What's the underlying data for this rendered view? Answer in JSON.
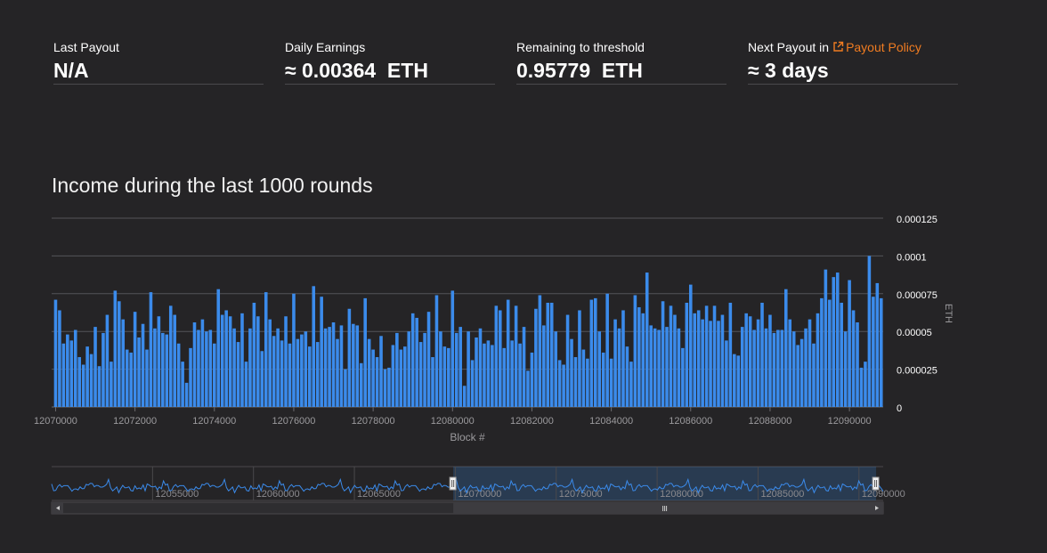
{
  "stats": {
    "last_payout": {
      "label": "Last Payout",
      "value": "N/A"
    },
    "daily_earnings": {
      "label": "Daily Earnings",
      "value": "≈ 0.00364  ETH"
    },
    "remaining": {
      "label": "Remaining to threshold",
      "value": "0.95779  ETH"
    },
    "next_payout": {
      "label": "Next Payout in",
      "link_label": "Payout Policy",
      "value": "≈ 3 days"
    }
  },
  "chart_title": "Income during the last 1000 rounds",
  "colors": {
    "bar": "#3b8beb",
    "background": "#252426",
    "accent": "#f07c21",
    "grid": "#555458",
    "navigator_line": "#3b8beb"
  },
  "chart_data": {
    "type": "bar",
    "title": "Income during the last 1000 rounds",
    "xlabel": "Block #",
    "ylabel": "ETH",
    "xlim": [
      12069900,
      12090850
    ],
    "ylim": [
      0,
      0.000125
    ],
    "x_ticks": [
      12070000,
      12072000,
      12074000,
      12076000,
      12078000,
      12080000,
      12082000,
      12084000,
      12086000,
      12088000,
      12090000
    ],
    "x_tick_labels": [
      "12070000",
      "12072000",
      "12074000",
      "12076000",
      "12078000",
      "12080000",
      "12082000",
      "12084000",
      "12086000",
      "12088000",
      "12090000"
    ],
    "y_ticks": [
      0,
      2.5e-05,
      5e-05,
      7.5e-05,
      0.0001,
      0.000125
    ],
    "y_tick_labels": [
      "0",
      "0.000025",
      "0.00005",
      "0.000075",
      "0.0001",
      "0.000125"
    ],
    "grid": true,
    "bar_width_blocks": 80,
    "x": [
      12070000,
      12070100,
      12070200,
      12070300,
      12070400,
      12070500,
      12070600,
      12070700,
      12070800,
      12070900,
      12071000,
      12071100,
      12071200,
      12071300,
      12071400,
      12071500,
      12071600,
      12071700,
      12071800,
      12071900,
      12072000,
      12072100,
      12072200,
      12072300,
      12072400,
      12072500,
      12072600,
      12072700,
      12072800,
      12072900,
      12073000,
      12073100,
      12073200,
      12073300,
      12073400,
      12073500,
      12073600,
      12073700,
      12073800,
      12073900,
      12074000,
      12074100,
      12074200,
      12074300,
      12074400,
      12074500,
      12074600,
      12074700,
      12074800,
      12074900,
      12075000,
      12075100,
      12075200,
      12075300,
      12075400,
      12075500,
      12075600,
      12075700,
      12075800,
      12075900,
      12076000,
      12076100,
      12076200,
      12076300,
      12076400,
      12076500,
      12076600,
      12076700,
      12076800,
      12076900,
      12077000,
      12077100,
      12077200,
      12077300,
      12077400,
      12077500,
      12077600,
      12077700,
      12077800,
      12077900,
      12078000,
      12078100,
      12078200,
      12078300,
      12078400,
      12078500,
      12078600,
      12078700,
      12078800,
      12078900,
      12079000,
      12079100,
      12079200,
      12079300,
      12079400,
      12079500,
      12079600,
      12079700,
      12079800,
      12079900,
      12080000,
      12080100,
      12080200,
      12080300,
      12080400,
      12080500,
      12080600,
      12080700,
      12080800,
      12080900,
      12081000,
      12081100,
      12081200,
      12081300,
      12081400,
      12081500,
      12081600,
      12081700,
      12081800,
      12081900,
      12082000,
      12082100,
      12082200,
      12082300,
      12082400,
      12082500,
      12082600,
      12082700,
      12082800,
      12082900,
      12083000,
      12083100,
      12083200,
      12083300,
      12083400,
      12083500,
      12083600,
      12083700,
      12083800,
      12083900,
      12084000,
      12084100,
      12084200,
      12084300,
      12084400,
      12084500,
      12084600,
      12084700,
      12084800,
      12084900,
      12085000,
      12085100,
      12085200,
      12085300,
      12085400,
      12085500,
      12085600,
      12085700,
      12085800,
      12085900,
      12086000,
      12086100,
      12086200,
      12086300,
      12086400,
      12086500,
      12086600,
      12086700,
      12086800,
      12086900,
      12087000,
      12087100,
      12087200,
      12087300,
      12087400,
      12087500,
      12087600,
      12087700,
      12087800,
      12087900,
      12088000,
      12088100,
      12088200,
      12088300,
      12088400,
      12088500,
      12088600,
      12088700,
      12088800,
      12088900,
      12089000,
      12089100,
      12089200,
      12089300,
      12089400,
      12089500,
      12089600,
      12089700,
      12089800,
      12089900,
      12090000,
      12090100,
      12090200,
      12090300,
      12090400,
      12090500,
      12090600,
      12090700,
      12090800
    ],
    "values": [
      7.1e-05,
      6.4e-05,
      4.2e-05,
      4.8e-05,
      4.4e-05,
      5.1e-05,
      3.3e-05,
      2.8e-05,
      4e-05,
      3.5e-05,
      5.3e-05,
      2.7e-05,
      4.9e-05,
      6.1e-05,
      3e-05,
      7.7e-05,
      7e-05,
      5.8e-05,
      3.8e-05,
      3.6e-05,
      6.3e-05,
      4.6e-05,
      5.5e-05,
      3.8e-05,
      7.6e-05,
      5.2e-05,
      6e-05,
      4.9e-05,
      4.8e-05,
      6.7e-05,
      6.1e-05,
      4.2e-05,
      3e-05,
      1.6e-05,
      3.9e-05,
      5.6e-05,
      5.1e-05,
      5.8e-05,
      5e-05,
      5.1e-05,
      4.2e-05,
      7.8e-05,
      6.1e-05,
      6.4e-05,
      6e-05,
      5.2e-05,
      4.3e-05,
      6.2e-05,
      3e-05,
      5.2e-05,
      6.9e-05,
      6e-05,
      3.7e-05,
      7.6e-05,
      5.8e-05,
      4.7e-05,
      5.2e-05,
      4.4e-05,
      6e-05,
      4.2e-05,
      7.5e-05,
      4.5e-05,
      4.8e-05,
      5e-05,
      4e-05,
      8e-05,
      4.3e-05,
      7.3e-05,
      5.2e-05,
      5.3e-05,
      5.6e-05,
      4.5e-05,
      5.4e-05,
      2.5e-05,
      6.5e-05,
      5.5e-05,
      5.4e-05,
      2.9e-05,
      7.2e-05,
      4.5e-05,
      3.8e-05,
      3.3e-05,
      4.7e-05,
      2.5e-05,
      2.6e-05,
      4.1e-05,
      4.9e-05,
      3.8e-05,
      4e-05,
      5e-05,
      6.2e-05,
      5.9e-05,
      4.3e-05,
      4.9e-05,
      6.3e-05,
      3.3e-05,
      7.4e-05,
      5e-05,
      4e-05,
      3.9e-05,
      7.7e-05,
      4.9e-05,
      5.3e-05,
      1.4e-05,
      5e-05,
      3.1e-05,
      4.6e-05,
      5.2e-05,
      4.2e-05,
      4.4e-05,
      4.1e-05,
      6.7e-05,
      6.4e-05,
      3.9e-05,
      7.1e-05,
      4.4e-05,
      6.7e-05,
      4.2e-05,
      5.3e-05,
      2.4e-05,
      3.6e-05,
      6.5e-05,
      7.4e-05,
      5.4e-05,
      6.9e-05,
      6.9e-05,
      5e-05,
      3.1e-05,
      2.8e-05,
      6.1e-05,
      4.5e-05,
      3.3e-05,
      6.4e-05,
      3.8e-05,
      3.2e-05,
      7.1e-05,
      7.2e-05,
      5e-05,
      3.6e-05,
      7.5e-05,
      3.2e-05,
      5.8e-05,
      5.2e-05,
      6.4e-05,
      4e-05,
      3e-05,
      7.4e-05,
      6.6e-05,
      6.2e-05,
      8.9e-05,
      5.4e-05,
      5.2e-05,
      5.1e-05,
      7e-05,
      5.3e-05,
      6.7e-05,
      6.1e-05,
      5.2e-05,
      3.9e-05,
      6.9e-05,
      8.1e-05,
      6.2e-05,
      6.4e-05,
      5.8e-05,
      6.7e-05,
      5.7e-05,
      6.7e-05,
      5.7e-05,
      6.1e-05,
      4.4e-05,
      6.9e-05,
      3.5e-05,
      3.4e-05,
      5.3e-05,
      6.2e-05,
      6e-05,
      5.1e-05,
      5.8e-05,
      6.9e-05,
      5.2e-05,
      6.1e-05,
      4.9e-05,
      5.1e-05,
      5.1e-05,
      7.8e-05,
      5.8e-05,
      5e-05,
      4.1e-05,
      4.5e-05,
      5.2e-05,
      5.8e-05,
      4.2e-05,
      6.2e-05,
      7.2e-05,
      9.1e-05,
      7.1e-05,
      8.6e-05,
      8.9e-05,
      6.9e-05,
      5e-05,
      8.4e-05,
      6.4e-05,
      5.6e-05,
      2.6e-05,
      3e-05,
      0.0001,
      7.3e-05,
      8.2e-05,
      7.2e-05
    ]
  },
  "navigator": {
    "ticks": [
      12055000,
      12060000,
      12065000,
      12070000,
      12075000,
      12080000,
      12085000,
      12090000
    ],
    "tick_labels": [
      "12055000",
      "12060000",
      "12065000",
      "12070000",
      "12075000",
      "12080000",
      "12085000",
      "12090000"
    ],
    "range": [
      12050000,
      12091200
    ],
    "selection": [
      12069900,
      12090850
    ]
  }
}
